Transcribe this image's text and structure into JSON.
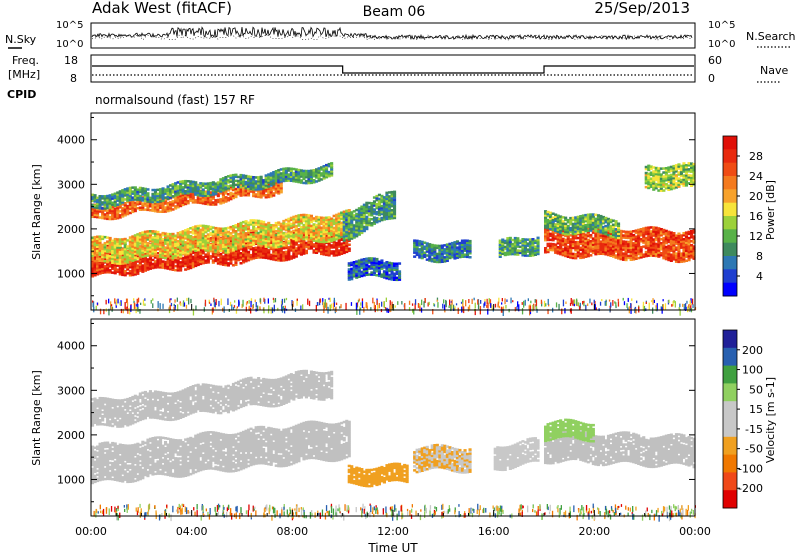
{
  "header": {
    "station": "Adak West (fitACF)",
    "beam": "Beam 06",
    "date": "25/Sep/2013"
  },
  "noise_panel": {
    "left_label": "N.Sky",
    "right_label": "N.Search",
    "left_ticks": [
      "10^5",
      "10^0"
    ],
    "right_ticks": [
      "10^5",
      "10^0"
    ]
  },
  "freq_panel": {
    "left_label_1": "Freq.",
    "left_label_2": "[MHz]",
    "left_ticks": [
      "18",
      "8"
    ],
    "right_label": "Nave",
    "right_ticks": [
      "60",
      "0"
    ],
    "cpid_label": "CPID",
    "cpid_text": "normalsound (fast) 157 RF"
  },
  "colors": {
    "power_scale": [
      "#0000ff",
      "#1f3fd0",
      "#2d78b4",
      "#3e8a5e",
      "#58b248",
      "#9cd13a",
      "#f7e43a",
      "#f7a22c",
      "#f47a1e",
      "#f04c14",
      "#e82a0e",
      "#e01008"
    ],
    "velocity_scale": [
      "#e00000",
      "#f04818",
      "#f07800",
      "#f0a020",
      "#c8c8c8",
      "#c8c8c8",
      "#90d060",
      "#40a040",
      "#2860b0",
      "#202098"
    ],
    "ground_scatter": "#c0c0c0"
  },
  "chart_data": [
    {
      "type": "heatmap",
      "title": "Power",
      "xlabel": "Time UT",
      "ylabel": "Slant Range [km]",
      "x_ticks": [
        "00:00",
        "04:00",
        "08:00",
        "12:00",
        "16:00",
        "20:00",
        "00:00"
      ],
      "y_ticks": [
        "1000",
        "2000",
        "3000",
        "4000"
      ],
      "xlim_hours": [
        0,
        24
      ],
      "ylim_km": [
        180,
        4600
      ],
      "colorbar_label": "Power [dB]",
      "colorbar_ticks": [
        "4",
        "8",
        "12",
        "16",
        "20",
        "24",
        "28"
      ],
      "colorbar_range": [
        0,
        32
      ],
      "regions": [
        {
          "t0": 0.0,
          "t1": 10.2,
          "r0_km": 1200,
          "r1_km": 1800,
          "slope_km_per_h": 55,
          "value": 28
        },
        {
          "t0": 0.0,
          "t1": 10.2,
          "r0_km": 1500,
          "r1_km": 2050,
          "slope_km_per_h": 60,
          "value": 18
        },
        {
          "t0": 0.0,
          "t1": 7.5,
          "r0_km": 2500,
          "r1_km": 2800,
          "slope_km_per_h": 80,
          "value": 24
        },
        {
          "t0": 0.0,
          "t1": 9.5,
          "r0_km": 2800,
          "r1_km": 3100,
          "slope_km_per_h": 70,
          "value": 10
        },
        {
          "t0": 10.0,
          "t1": 12.0,
          "r0_km": 2000,
          "r1_km": 2600,
          "slope_km_per_h": 250,
          "value": 10
        },
        {
          "t0": 10.2,
          "t1": 12.2,
          "r0_km": 900,
          "r1_km": 1300,
          "slope_km_per_h": 0,
          "value": 6
        },
        {
          "t0": 12.8,
          "t1": 15.0,
          "r0_km": 1300,
          "r1_km": 1700,
          "slope_km_per_h": 0,
          "value": 8
        },
        {
          "t0": 16.2,
          "t1": 17.8,
          "r0_km": 1400,
          "r1_km": 1800,
          "slope_km_per_h": 100,
          "value": 10
        },
        {
          "t0": 18.0,
          "t1": 24.0,
          "r0_km": 1350,
          "r1_km": 2000,
          "slope_km_per_h": -20,
          "value": 26
        },
        {
          "t0": 18.0,
          "t1": 21.0,
          "r0_km": 1900,
          "r1_km": 2300,
          "slope_km_per_h": -40,
          "value": 12
        },
        {
          "t0": 22.0,
          "t1": 24.0,
          "r0_km": 2900,
          "r1_km": 3400,
          "slope_km_per_h": 0,
          "value": 14
        }
      ]
    },
    {
      "type": "heatmap",
      "title": "Velocity",
      "xlabel": "Time UT",
      "ylabel": "Slant Range [km]",
      "x_ticks": [
        "00:00",
        "04:00",
        "08:00",
        "12:00",
        "16:00",
        "20:00",
        "00:00"
      ],
      "y_ticks": [
        "1000",
        "2000",
        "3000",
        "4000"
      ],
      "xlim_hours": [
        0,
        24
      ],
      "ylim_km": [
        180,
        4600
      ],
      "colorbar_label": "Velocity [m s-1]",
      "colorbar_ticks": [
        "200",
        "100",
        "50",
        "15",
        "-15",
        "-50",
        "-100",
        "-200"
      ],
      "colorbar_range": [
        -250,
        250
      ],
      "regions": [
        {
          "t0": 0.0,
          "t1": 10.2,
          "r0_km": 1200,
          "r1_km": 2050,
          "slope_km_per_h": 58,
          "value": 0,
          "ground_scatter": true
        },
        {
          "t0": 0.0,
          "t1": 9.5,
          "r0_km": 2500,
          "r1_km": 3100,
          "slope_km_per_h": 75,
          "value": 0,
          "ground_scatter": true
        },
        {
          "t0": 10.2,
          "t1": 12.5,
          "r0_km": 900,
          "r1_km": 1300,
          "slope_km_per_h": 20,
          "value": -60
        },
        {
          "t0": 12.8,
          "t1": 15.0,
          "r0_km": 1200,
          "r1_km": 1700,
          "slope_km_per_h": 0,
          "value": -50
        },
        {
          "t0": 16.0,
          "t1": 17.8,
          "r0_km": 1300,
          "r1_km": 1800,
          "slope_km_per_h": 80,
          "value": -40
        },
        {
          "t0": 18.0,
          "t1": 24.0,
          "r0_km": 1350,
          "r1_km": 2000,
          "slope_km_per_h": -20,
          "value": 0,
          "ground_scatter": true
        },
        {
          "t0": 18.0,
          "t1": 20.0,
          "r0_km": 1900,
          "r1_km": 2300,
          "slope_km_per_h": 0,
          "value": 60
        }
      ]
    }
  ]
}
